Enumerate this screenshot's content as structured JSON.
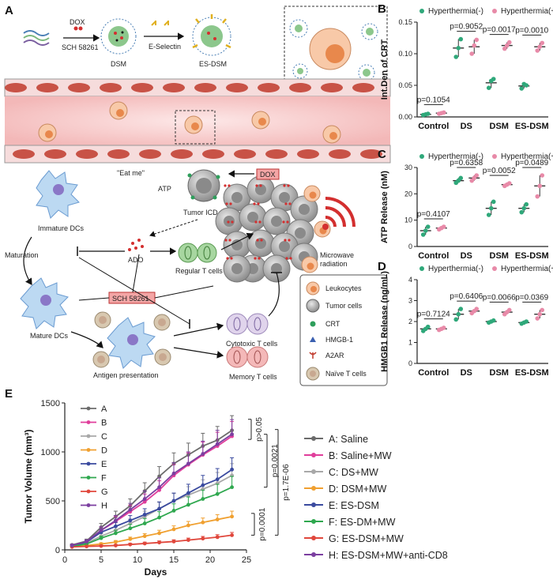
{
  "panel_a": {
    "label": "A",
    "dox": "DOX",
    "sch": "SCH 58261",
    "dsm": "DSM",
    "eselectin": "E-Selectin",
    "esdsm": "ES-DSM",
    "eat_me": "\"Eat me\"",
    "atp": "ATP",
    "tumor_icd": "Tumor ICD",
    "dox_box": "DOX",
    "immature_dcs": "Immature DCs",
    "maturation": "Maturation",
    "ado": "ADO",
    "regular_t": "Regular T cells",
    "sch_box": "SCH 58261",
    "mature_dcs": "Mature DCs",
    "antigen_presentation": "Antigen presentation",
    "cytotoxic_t": "Cytotoxic T cells",
    "memory_t": "Memory T cells",
    "microwave": "Microwave\nradiation",
    "legend": [
      "Leukocytes",
      "Tumor cells",
      "CRT",
      "HMGB-1",
      "A2AR",
      "Naïve T cells"
    ]
  },
  "chart_data": [
    {
      "panel": "B",
      "type": "scatter",
      "ylabel": "Int.Den of CRT",
      "categories": [
        "Control",
        "DS",
        "DSM",
        "ES-DSM"
      ],
      "ylim": [
        0,
        0.15
      ],
      "yticks": [
        "0.00",
        "0.05",
        "0.10",
        "0.15"
      ],
      "legend": [
        "Hyperthermia(-)",
        "Hyperthermia(+)"
      ],
      "series": [
        {
          "name": "Hyperthermia(-)",
          "mean": [
            0.004,
            0.109,
            0.054,
            0.049
          ],
          "points": [
            [
              0.003,
              0.004,
              0.005
            ],
            [
              0.095,
              0.109,
              0.123
            ],
            [
              0.046,
              0.057,
              0.06
            ],
            [
              0.045,
              0.052,
              0.05
            ]
          ]
        },
        {
          "name": "Hyperthermia(+)",
          "mean": [
            0.006,
            0.111,
            0.113,
            0.111
          ],
          "points": [
            [
              0.005,
              0.006,
              0.007
            ],
            [
              0.1,
              0.113,
              0.122
            ],
            [
              0.108,
              0.113,
              0.118
            ],
            [
              0.105,
              0.111,
              0.117
            ]
          ]
        }
      ],
      "pvalues": [
        "p=0.1054",
        "p=0.9052",
        "p=0.0017",
        "p=0.0010"
      ]
    },
    {
      "panel": "C",
      "type": "scatter",
      "ylabel": "ATP Release (nM)",
      "categories": [
        "Control",
        "DS",
        "DSM",
        "ES-DSM"
      ],
      "ylim": [
        0,
        30
      ],
      "yticks": [
        "0",
        "10",
        "20",
        "30"
      ],
      "legend": [
        "Hyperthermia(-)",
        "Hyperthermia(+)"
      ],
      "series": [
        {
          "name": "Hyperthermia(-)",
          "mean": [
            6.0,
            25.0,
            14.5,
            14.5
          ],
          "points": [
            [
              4.5,
              6.0,
              7.5
            ],
            [
              24.2,
              25.0,
              26.0
            ],
            [
              12.0,
              14.5,
              17.0
            ],
            [
              13.0,
              14.5,
              16.0
            ]
          ]
        },
        {
          "name": "Hyperthermia(+)",
          "mean": [
            7.0,
            26.0,
            23.5,
            23.0
          ],
          "points": [
            [
              6.5,
              7.0,
              7.5
            ],
            [
              25.0,
              26.0,
              27.0
            ],
            [
              23.0,
              23.5,
              24.0
            ],
            [
              19.0,
              23.0,
              27.0
            ]
          ]
        }
      ],
      "pvalues": [
        "p=0.4107",
        "p=0.6358",
        "p=0.0052",
        "p=0.0489"
      ]
    },
    {
      "panel": "D",
      "type": "scatter",
      "ylabel": "HMGB1 Release (ng/mL)",
      "categories": [
        "Control",
        "DS",
        "DSM",
        "ES-DSM"
      ],
      "ylim": [
        0,
        4
      ],
      "yticks": [
        "0",
        "1",
        "2",
        "3",
        "4"
      ],
      "legend": [
        "Hyperthermia(-)",
        "Hyperthermia(+)"
      ],
      "series": [
        {
          "name": "Hyperthermia(-)",
          "mean": [
            1.65,
            2.35,
            2.0,
            1.95
          ],
          "points": [
            [
              1.55,
              1.65,
              1.75
            ],
            [
              2.1,
              2.35,
              2.6
            ],
            [
              1.95,
              2.0,
              2.05
            ],
            [
              1.9,
              1.95,
              2.0
            ]
          ]
        },
        {
          "name": "Hyperthermia(+)",
          "mean": [
            1.65,
            2.5,
            2.45,
            2.35
          ],
          "points": [
            [
              1.6,
              1.65,
              1.7
            ],
            [
              2.4,
              2.5,
              2.6
            ],
            [
              2.35,
              2.45,
              2.55
            ],
            [
              2.15,
              2.35,
              2.55
            ]
          ]
        }
      ],
      "pvalues": [
        "p=0.7124",
        "p=0.6406",
        "p=0.0066",
        "p=0.0369"
      ]
    },
    {
      "panel": "E",
      "type": "line",
      "xlabel": "Days",
      "ylabel": "Tumor Volume (mm³)",
      "xlim": [
        0,
        25
      ],
      "ylim": [
        0,
        1500
      ],
      "xticks": [
        "0",
        "5",
        "10",
        "15",
        "20",
        "25"
      ],
      "yticks": [
        "0",
        "500",
        "1000",
        "1500"
      ],
      "x": [
        1,
        3,
        5,
        7,
        9,
        11,
        13,
        15,
        17,
        19,
        21,
        23
      ],
      "series": [
        {
          "name": "A",
          "label": "A: Saline",
          "color": "#6b6b6b",
          "values": [
            50,
            90,
            230,
            340,
            450,
            600,
            750,
            880,
            970,
            1060,
            1120,
            1220
          ],
          "err": [
            10,
            20,
            40,
            55,
            70,
            85,
            100,
            110,
            120,
            130,
            140,
            150
          ]
        },
        {
          "name": "B",
          "label": "B: Saline+MW",
          "color": "#e03e9b",
          "values": [
            45,
            80,
            200,
            290,
            390,
            490,
            610,
            760,
            870,
            970,
            1060,
            1160
          ],
          "err": [
            10,
            18,
            35,
            50,
            65,
            80,
            95,
            110,
            120,
            130,
            140,
            150
          ]
        },
        {
          "name": "C",
          "label": "C: DS+MW",
          "color": "#a8a8a8",
          "values": [
            40,
            70,
            140,
            200,
            270,
            340,
            420,
            500,
            560,
            620,
            680,
            760
          ],
          "err": [
            8,
            15,
            25,
            35,
            45,
            55,
            65,
            75,
            85,
            95,
            110,
            120
          ]
        },
        {
          "name": "D",
          "label": "D: DSM+MW",
          "color": "#f0a030",
          "values": [
            35,
            45,
            60,
            80,
            110,
            140,
            170,
            210,
            250,
            280,
            310,
            340
          ],
          "err": [
            5,
            8,
            12,
            15,
            20,
            25,
            30,
            35,
            40,
            45,
            50,
            55
          ]
        },
        {
          "name": "E",
          "label": "E: ES-DSM",
          "color": "#3a4a9f",
          "values": [
            40,
            80,
            180,
            240,
            300,
            360,
            420,
            500,
            580,
            660,
            720,
            820
          ],
          "err": [
            8,
            15,
            30,
            40,
            50,
            60,
            70,
            80,
            90,
            100,
            110,
            120
          ]
        },
        {
          "name": "F",
          "label": "F: ES-DM+MW",
          "color": "#2fa84f",
          "values": [
            35,
            60,
            120,
            170,
            220,
            270,
            330,
            400,
            460,
            520,
            570,
            640
          ],
          "err": [
            6,
            12,
            20,
            30,
            40,
            50,
            60,
            70,
            80,
            90,
            100,
            110
          ]
        },
        {
          "name": "G",
          "label": "G: ES-DSM+MW",
          "color": "#e0473c",
          "values": [
            30,
            35,
            40,
            45,
            55,
            65,
            75,
            85,
            100,
            115,
            130,
            150
          ],
          "err": [
            4,
            6,
            8,
            10,
            12,
            14,
            16,
            18,
            20,
            22,
            25,
            28
          ]
        },
        {
          "name": "H",
          "label": "H: ES-DSM+MW+anti-CD8",
          "color": "#7b3fa0",
          "values": [
            45,
            85,
            200,
            300,
            410,
            520,
            640,
            780,
            880,
            980,
            1080,
            1180
          ],
          "err": [
            10,
            18,
            35,
            50,
            65,
            80,
            95,
            110,
            120,
            130,
            140,
            150
          ]
        }
      ],
      "pvalues": [
        "p>0.05",
        "p=0.0021",
        "p=1.7E-06",
        "p=0.0001"
      ]
    }
  ],
  "panel_labels": [
    "B",
    "C",
    "D",
    "E"
  ]
}
